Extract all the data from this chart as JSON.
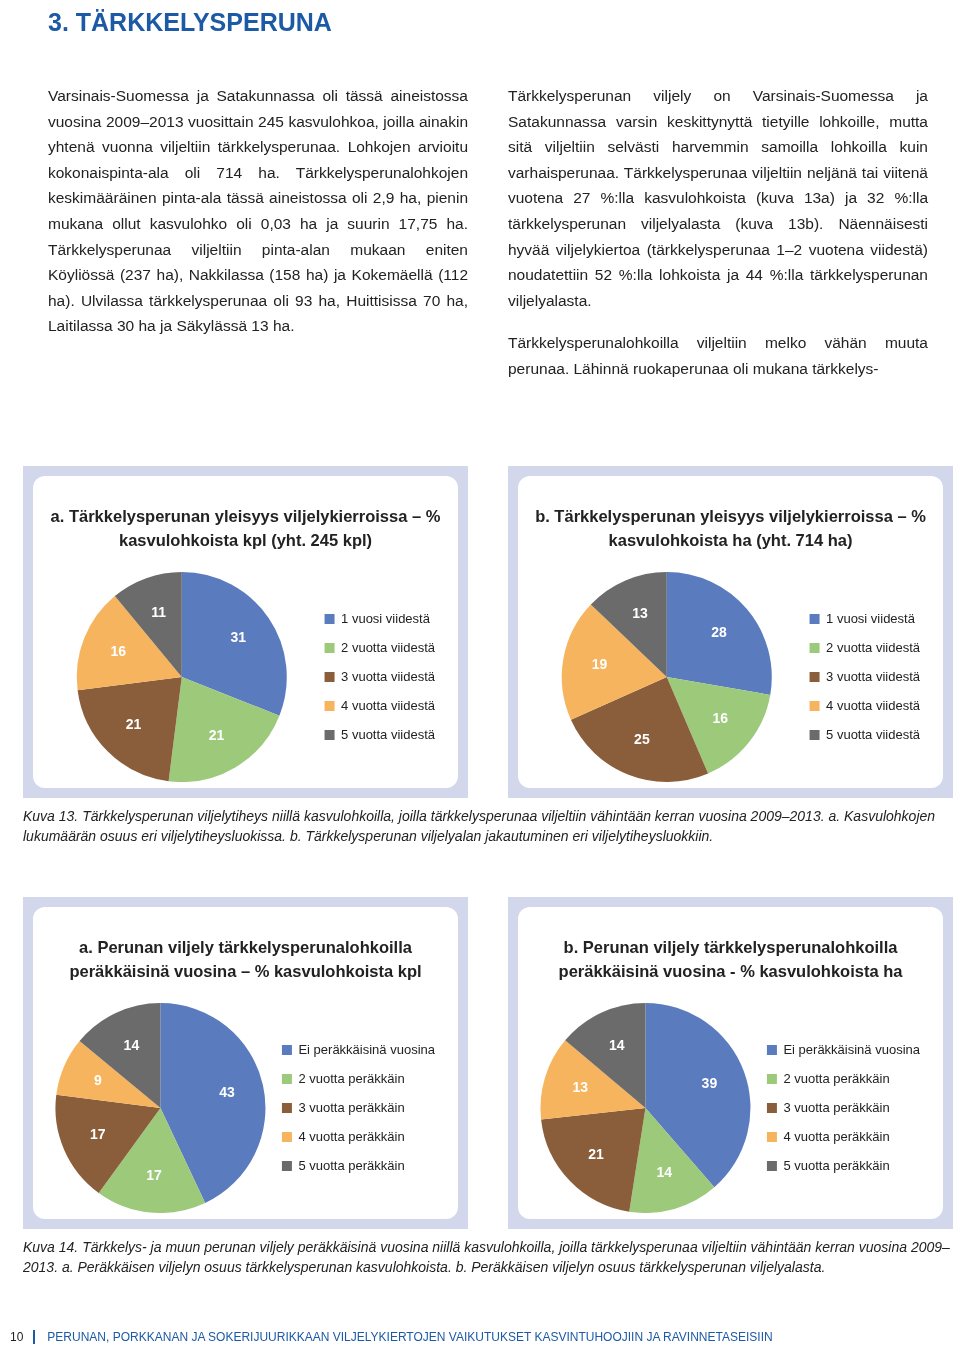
{
  "chart_data": [
    {
      "type": "other",
      "title": "3. TÄRKKELYSPERUNA",
      "annotations": [
        "Varsinais-Suomessa ja Satakunnassa oli tässä aineistossa vuosina 2009–2013 vuosittain 245 kasvulohkoa, joilla ainakin yhtenä vuonna viljeltiin tärkkelysperunaa. Lohkojen arvioitu kokonaispinta-ala oli 714 ha. Tärkkelysperunalohkojen keskimääräinen pinta-ala tässä aineistossa oli 2,9 ha, pienin mukana ollut kasvulohko oli 0,03 ha ja suurin 17,75 ha. Tärkkelysperunaa viljeltiin pinta-alan mukaan eniten Köyliössä (237 ha), Nakkilassa (158 ha) ja Kokemäellä (112 ha). Ulvilassa tärkkelysperunaa oli 93 ha, Huittisissa 70 ha, Laitilassa 30 ha ja Säkylässä 13 ha.",
        "Tärkkelysperunan viljely on Varsinais-Suomessa ja Satakunnassa varsin keskittynyttä tietyille lohkoille, mutta sitä viljeltiin selvästi harvemmin samoilla lohkoilla kuin varhaisperunaa. Tärkkelysperunaa viljeltiin neljänä tai viitenä vuotena 27 %:lla kasvulohkoista (kuva 13a) ja 32 %:lla tärkkelysperunan viljelyalasta (kuva 13b). Näennäisesti hyvää viljelykiertoa (tärkkelysperunaa 1–2 vuotena viidestä) noudatettiin 52 %:lla lohkoista ja 44 %:lla tärkkelysperunan viljelyalasta.",
        "Tärkkelysperunalohkoilla viljeltiin melko vähän muuta perunaa. Lähinnä ruokaperunaa oli mukana tärkkelys-"
      ]
    },
    {
      "type": "pie",
      "title": "a. Tärkkelysperunan yleisyys viljelykierroissa – % kasvulohkoista kpl (yht. 245 kpl)",
      "categories": [
        "1 vuosi viidestä",
        "2 vuotta viidestä",
        "3 vuotta viidestä",
        "4 vuotta viidestä",
        "5 vuotta viidestä"
      ],
      "values": [
        31,
        21,
        21,
        16,
        11
      ],
      "colors": [
        "#5b7bbf",
        "#9dc97a",
        "#8b5e3b",
        "#f6b45e",
        "#6b6b6b"
      ],
      "data_labels": true,
      "legend": "right"
    },
    {
      "type": "pie",
      "title": "b. Tärkkelysperunan yleisyys viljelykierroissa – % kasvulohkoista ha (yht. 714 ha)",
      "categories": [
        "1 vuosi viidestä",
        "2 vuotta viidestä",
        "3 vuotta viidestä",
        "4 vuotta viidestä",
        "5 vuotta viidestä"
      ],
      "values": [
        28,
        16,
        25,
        19,
        13
      ],
      "colors": [
        "#5b7bbf",
        "#9dc97a",
        "#8b5e3b",
        "#f6b45e",
        "#6b6b6b"
      ],
      "data_labels": true,
      "legend": "right"
    },
    {
      "type": "other",
      "annotations": [
        "Kuva 13. Tärkkelysperunan viljelytiheys niillä kasvulohkoilla, joilla tärkkelysperunaa viljeltiin vähintään kerran vuosina 2009–2013. a. Kasvulohkojen lukumäärän osuus eri viljelytiheysluokissa. b. Tärkkelysperunan viljelyalan jakautuminen eri viljelytiheysluokkiin."
      ]
    },
    {
      "type": "pie",
      "title": "a. Perunan viljely tärkkelysperunalohkoilla peräkkäisinä vuosina – % kasvulohkoista kpl",
      "categories": [
        "Ei peräkkäisinä vuosina",
        "2 vuotta peräkkäin",
        "3 vuotta peräkkäin",
        "4 vuotta peräkkäin",
        "5 vuotta peräkkäin"
      ],
      "values": [
        43,
        17,
        17,
        9,
        14
      ],
      "colors": [
        "#5b7bbf",
        "#9dc97a",
        "#8b5e3b",
        "#f6b45e",
        "#6b6b6b"
      ],
      "data_labels": true,
      "legend": "right"
    },
    {
      "type": "pie",
      "title": "b. Perunan viljely tärkkelysperunalohkoilla peräkkäisinä vuosina - % kasvulohkoista ha",
      "categories": [
        "Ei peräkkäisinä vuosina",
        "2 vuotta peräkkäin",
        "3 vuotta peräkkäin",
        "4 vuotta peräkkäin",
        "5 vuotta peräkkäin"
      ],
      "values": [
        39,
        14,
        21,
        13,
        14
      ],
      "colors": [
        "#5b7bbf",
        "#9dc97a",
        "#8b5e3b",
        "#f6b45e",
        "#6b6b6b"
      ],
      "data_labels": true,
      "legend": "right"
    },
    {
      "type": "other",
      "annotations": [
        "Kuva 14. Tärkkelys- ja muun perunan viljely peräkkäisinä vuosina niillä kasvulohkoilla, joilla tärkkelysperunaa viljeltiin vähintään kerran vuosina 2009–2013. a. Peräkkäisen viljelyn osuus tärkkelysperunan kasvulohkoista. b. Peräkkäisen viljelyn osuus tärkkelysperunan viljelyalasta."
      ]
    },
    {
      "type": "other",
      "annotations": [
        "10",
        "PERUNAN, PORKKANAN JA SOKERIJUURIKKAAN VILJELYKIERTOJEN VAIKUTUKSET KASVINTUHOOJIIN JA RAVINNETASEISIIN"
      ]
    }
  ]
}
